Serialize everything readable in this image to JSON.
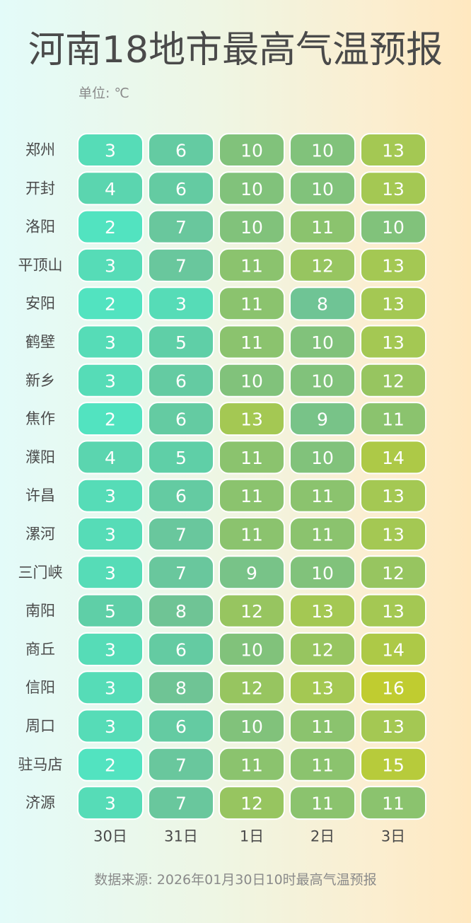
{
  "header": {
    "title": "河南18地市最高气温预报",
    "unit": "单位: ℃"
  },
  "footer": {
    "source": "数据来源: 2026年01月30日10时最高气温预报"
  },
  "colors": {
    "scale": [
      "#52e3c0",
      "#5ed0a8",
      "#6cc49a",
      "#84c276",
      "#a6c850",
      "#c0cc30"
    ],
    "cell_border": "#ffffff",
    "value_text": "#ffffff",
    "label_text": "#4a4a4a"
  },
  "chart_data": {
    "type": "heatmap",
    "title": "河南18地市最高气温预报",
    "unit": "单位: ℃",
    "x": [
      "30日",
      "31日",
      "1日",
      "2日",
      "3日"
    ],
    "y": [
      "郑州",
      "开封",
      "洛阳",
      "平顶山",
      "安阳",
      "鹤壁",
      "新乡",
      "焦作",
      "濮阳",
      "许昌",
      "漯河",
      "三门峡",
      "南阳",
      "商丘",
      "信阳",
      "周口",
      "驻马店",
      "济源"
    ],
    "values": [
      [
        3,
        6,
        10,
        10,
        13
      ],
      [
        4,
        6,
        10,
        10,
        13
      ],
      [
        2,
        7,
        10,
        11,
        10
      ],
      [
        3,
        7,
        11,
        12,
        13
      ],
      [
        2,
        3,
        11,
        8,
        13
      ],
      [
        3,
        5,
        11,
        10,
        13
      ],
      [
        3,
        6,
        10,
        10,
        12
      ],
      [
        2,
        6,
        13,
        9,
        11
      ],
      [
        4,
        5,
        11,
        10,
        14
      ],
      [
        3,
        6,
        11,
        11,
        13
      ],
      [
        3,
        7,
        11,
        11,
        13
      ],
      [
        3,
        7,
        9,
        10,
        12
      ],
      [
        5,
        8,
        12,
        13,
        13
      ],
      [
        3,
        6,
        10,
        12,
        14
      ],
      [
        3,
        8,
        12,
        13,
        16
      ],
      [
        3,
        6,
        10,
        11,
        13
      ],
      [
        2,
        7,
        11,
        11,
        15
      ],
      [
        3,
        7,
        12,
        11,
        11
      ]
    ],
    "value_range": [
      2,
      16
    ]
  }
}
